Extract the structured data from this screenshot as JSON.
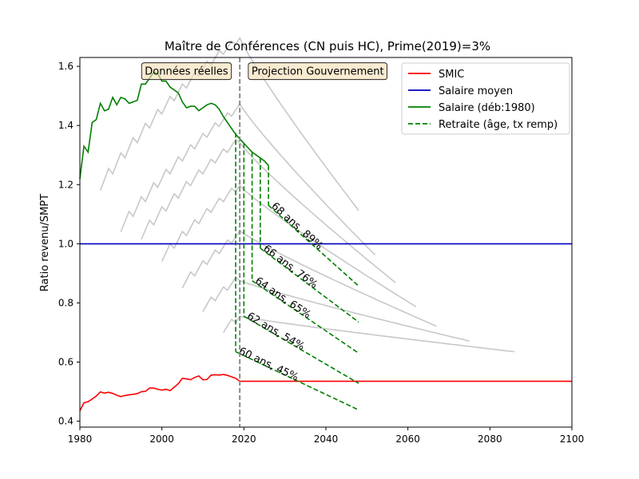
{
  "chart_data": {
    "type": "line",
    "title": "Maître de Conférences (CN puis HC), Prime(2019)=3%",
    "xlabel": "",
    "ylabel": "Ratio revenu/SMPT",
    "xlim": [
      1980,
      2100
    ],
    "ylim": [
      0.38,
      1.63
    ],
    "xticks": [
      "1980",
      "2000",
      "2020",
      "2040",
      "2060",
      "2080",
      "2100"
    ],
    "yticks": [
      "0.4",
      "0.6",
      "0.8",
      "1.0",
      "1.2",
      "1.4",
      "1.6"
    ],
    "grid": false,
    "legend_position": "top-right",
    "legend": [
      {
        "label": "SMIC",
        "color": "#ff0000",
        "style": "solid"
      },
      {
        "label": "Salaire moyen",
        "color": "#0000bf",
        "style": "solid"
      },
      {
        "label": "Salaire (déb:1980)",
        "color": "#008000",
        "style": "solid"
      },
      {
        "label": "Retraite (âge, tx remp)",
        "color": "#008000",
        "style": "dashed"
      }
    ],
    "vline": {
      "x": 2019,
      "color": "#808080"
    },
    "annotations": [
      {
        "text": "Données réelles",
        "x": 2006,
        "y": 1.585
      },
      {
        "text": "Projection Gouvernement",
        "x": 2038,
        "y": 1.585
      }
    ],
    "series": [
      {
        "name": "SMIC",
        "color": "#ff0000",
        "x": [
          1980,
          1981,
          1982,
          1983,
          1984,
          1985,
          1986,
          1987,
          1988,
          1989,
          1990,
          1991,
          1992,
          1993,
          1994,
          1995,
          1996,
          1997,
          1998,
          1999,
          2000,
          2001,
          2002,
          2003,
          2004,
          2005,
          2006,
          2007,
          2008,
          2009,
          2010,
          2011,
          2012,
          2013,
          2014,
          2015,
          2016,
          2017,
          2018,
          2019,
          2030,
          2040,
          2050,
          2060,
          2070,
          2080,
          2090,
          2100
        ],
        "values": [
          0.435,
          0.462,
          0.466,
          0.475,
          0.485,
          0.499,
          0.495,
          0.498,
          0.494,
          0.488,
          0.483,
          0.487,
          0.489,
          0.491,
          0.493,
          0.5,
          0.501,
          0.512,
          0.512,
          0.508,
          0.505,
          0.508,
          0.503,
          0.515,
          0.527,
          0.545,
          0.543,
          0.54,
          0.548,
          0.553,
          0.54,
          0.541,
          0.556,
          0.557,
          0.556,
          0.558,
          0.555,
          0.55,
          0.545,
          0.535,
          0.535,
          0.535,
          0.535,
          0.535,
          0.535,
          0.535,
          0.535,
          0.535
        ]
      },
      {
        "name": "Salaire moyen",
        "color": "#0000bf",
        "x": [
          1980,
          2100
        ],
        "values": [
          1.0,
          1.0
        ]
      },
      {
        "name": "Salaire (déb:1980)",
        "color": "#008000",
        "x": [
          1980,
          1981,
          1982,
          1983,
          1984,
          1985,
          1986,
          1987,
          1988,
          1989,
          1990,
          1991,
          1992,
          1993,
          1994,
          1995,
          1996,
          1997,
          1998,
          1999,
          2000,
          2001,
          2002,
          2003,
          2004,
          2005,
          2006,
          2007,
          2008,
          2009,
          2010,
          2011,
          2012,
          2013,
          2014,
          2015,
          2016,
          2017,
          2018,
          2019,
          2020,
          2021,
          2022,
          2023,
          2024,
          2025,
          2026
        ],
        "values": [
          1.22,
          1.33,
          1.31,
          1.41,
          1.42,
          1.475,
          1.45,
          1.455,
          1.495,
          1.47,
          1.495,
          1.49,
          1.475,
          1.48,
          1.485,
          1.54,
          1.54,
          1.56,
          1.58,
          1.575,
          1.55,
          1.55,
          1.53,
          1.52,
          1.51,
          1.48,
          1.46,
          1.465,
          1.465,
          1.45,
          1.46,
          1.47,
          1.475,
          1.47,
          1.455,
          1.43,
          1.41,
          1.39,
          1.37,
          1.355,
          1.34,
          1.325,
          1.31,
          1.3,
          1.29,
          1.28,
          1.265
        ]
      }
    ],
    "retraites": [
      {
        "label": "60 ans, 45%",
        "start_year": 2018,
        "start_salary": 1.375,
        "end_year": 2048,
        "y0": 0.635,
        "y1": 0.438
      },
      {
        "label": "62 ans, 54%",
        "start_year": 2020,
        "start_salary": 1.34,
        "end_year": 2048,
        "y0": 0.755,
        "y1": 0.528
      },
      {
        "label": "64 ans, 65%",
        "start_year": 2022,
        "start_salary": 1.31,
        "end_year": 2048,
        "y0": 0.875,
        "y1": 0.63
      },
      {
        "label": "66 ans, 76%",
        "start_year": 2024,
        "start_salary": 1.29,
        "end_year": 2048,
        "y0": 0.985,
        "y1": 0.735
      },
      {
        "label": "68 ans, 89%",
        "start_year": 2026,
        "start_salary": 1.265,
        "end_year": 2048,
        "y0": 1.13,
        "y1": 0.857
      }
    ],
    "grey_cohorts": [
      {
        "start_year": 1985,
        "start": 1.18
      },
      {
        "start_year": 1990,
        "start": 1.04
      },
      {
        "start_year": 1995,
        "start": 1.015
      },
      {
        "start_year": 2000,
        "start": 0.94
      },
      {
        "start_year": 2005,
        "start": 0.85
      },
      {
        "start_year": 2010,
        "start": 0.77
      },
      {
        "start_year": 2015,
        "start": 0.7
      }
    ]
  }
}
